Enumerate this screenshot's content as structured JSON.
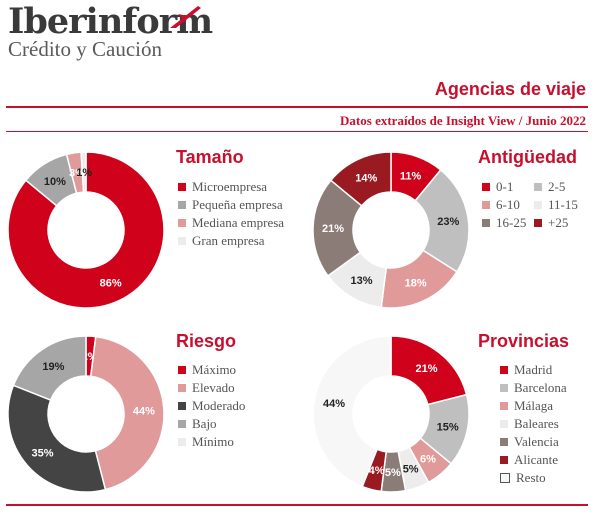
{
  "brand": {
    "name": "Iberinform",
    "sub": "Crédito y Caución"
  },
  "header": {
    "title": "Agencias de viaje",
    "subtitle": "Datos extraídos de Insight View / Junio 2022"
  },
  "chart_data": [
    {
      "type": "pie",
      "title": "Tamaño",
      "categories": [
        "Microempresa",
        "Pequeña empresa",
        "Mediana empresa",
        "Gran empresa"
      ],
      "values": [
        86,
        10,
        3,
        1
      ],
      "labels": [
        "86%",
        "10%",
        "3%",
        "1%"
      ],
      "colors": [
        "#d0021b",
        "#a6a6a6",
        "#e09a9a",
        "#ececec"
      ]
    },
    {
      "type": "pie",
      "title": "Antigüedad",
      "categories": [
        "0-1",
        "2-5",
        "6-10",
        "11-15",
        "16-25",
        "+25"
      ],
      "values": [
        11,
        23,
        18,
        13,
        21,
        14
      ],
      "labels": [
        "11%",
        "23%",
        "18%",
        "13%",
        "21%",
        "14%"
      ],
      "colors": [
        "#d0021b",
        "#bfbfbf",
        "#e09a9a",
        "#ececec",
        "#8c7c77",
        "#9a1a22"
      ]
    },
    {
      "type": "pie",
      "title": "Riesgo",
      "categories": [
        "Máximo",
        "Elevado",
        "Moderado",
        "Bajo",
        "Mínimo"
      ],
      "values": [
        2,
        44,
        35,
        19,
        0
      ],
      "labels": [
        "2%",
        "44%",
        "35%",
        "19%",
        ""
      ],
      "colors": [
        "#d0021b",
        "#e09a9a",
        "#444444",
        "#a6a6a6",
        "#ececec"
      ]
    },
    {
      "type": "pie",
      "title": "Provincias",
      "categories": [
        "Madrid",
        "Barcelona",
        "Málaga",
        "Baleares",
        "Valencia",
        "Alicante",
        "Resto"
      ],
      "values": [
        21,
        15,
        6,
        5,
        5,
        4,
        44
      ],
      "labels": [
        "21%",
        "15%",
        "6%",
        "5%",
        "5%",
        "4%",
        "44%"
      ],
      "colors": [
        "#d0021b",
        "#bfbfbf",
        "#e09a9a",
        "#ececec",
        "#8c7c77",
        "#9a1a22",
        "#f7f7f7"
      ]
    }
  ]
}
